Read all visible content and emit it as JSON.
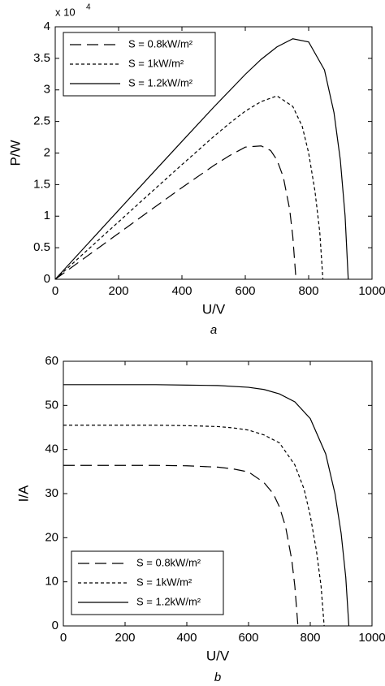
{
  "chart_data": [
    {
      "type": "line",
      "xlabel": "U/V",
      "ylabel": "P/W",
      "caption": "a",
      "axis_multiplier": "x 10",
      "axis_multiplier_exponent": "4",
      "xlim": [
        0,
        1000
      ],
      "ylim": [
        0,
        4
      ],
      "xticks": [
        0,
        200,
        400,
        600,
        800,
        1000
      ],
      "yticks": [
        0,
        0.5,
        1,
        1.5,
        2,
        2.5,
        3,
        3.5,
        4
      ],
      "legend": "upper left",
      "series": [
        {
          "name": "S = 0.8kW/m²",
          "color": "#000000",
          "linestyle": "dashed",
          "x": [
            0,
            100,
            200,
            300,
            400,
            500,
            550,
            600,
            650,
            680,
            700,
            720,
            740,
            750,
            760
          ],
          "values": [
            0,
            0.364,
            0.728,
            1.092,
            1.452,
            1.8,
            1.958,
            2.094,
            2.113,
            2.04,
            1.89,
            1.62,
            1.11,
            0.675,
            0
          ]
        },
        {
          "name": "S = 1kW/m²",
          "color": "#000000",
          "linestyle": "dotted",
          "x": [
            0,
            100,
            200,
            300,
            400,
            500,
            550,
            600,
            650,
            700,
            750,
            780,
            800,
            820,
            835,
            845
          ],
          "values": [
            0,
            0.455,
            0.91,
            1.365,
            1.816,
            2.26,
            2.47,
            2.664,
            2.815,
            2.905,
            2.738,
            2.418,
            2.0,
            1.394,
            0.752,
            0
          ]
        },
        {
          "name": "S = 1.2kW/m²",
          "color": "#000000",
          "linestyle": "solid",
          "x": [
            0,
            100,
            200,
            300,
            400,
            500,
            600,
            650,
            700,
            750,
            800,
            850,
            880,
            900,
            915,
            925
          ],
          "values": [
            0,
            0.547,
            1.094,
            1.641,
            2.184,
            2.725,
            3.246,
            3.484,
            3.682,
            3.81,
            3.76,
            3.315,
            2.64,
            1.89,
            1.007,
            0
          ]
        }
      ]
    },
    {
      "type": "line",
      "xlabel": "U/V",
      "ylabel": "I/A",
      "caption": "b",
      "xlim": [
        0,
        1000
      ],
      "ylim": [
        0,
        60
      ],
      "xticks": [
        0,
        200,
        400,
        600,
        800,
        1000
      ],
      "yticks": [
        0,
        10,
        20,
        30,
        40,
        50,
        60
      ],
      "legend": "lower left",
      "series": [
        {
          "name": "S = 0.8kW/m²",
          "color": "#000000",
          "linestyle": "dashed",
          "x": [
            0,
            100,
            200,
            300,
            400,
            500,
            550,
            600,
            650,
            680,
            700,
            720,
            740,
            750,
            760
          ],
          "values": [
            36.4,
            36.4,
            36.4,
            36.4,
            36.3,
            36,
            35.6,
            34.9,
            32.5,
            30,
            27,
            22.5,
            15,
            9,
            0
          ]
        },
        {
          "name": "S = 1kW/m²",
          "color": "#000000",
          "linestyle": "dotted",
          "x": [
            0,
            100,
            200,
            300,
            400,
            500,
            550,
            600,
            650,
            700,
            750,
            780,
            800,
            820,
            835,
            845
          ],
          "values": [
            45.5,
            45.5,
            45.5,
            45.5,
            45.4,
            45.2,
            44.9,
            44.4,
            43.3,
            41.5,
            36.5,
            31,
            25,
            17,
            9,
            0
          ]
        },
        {
          "name": "S = 1.2kW/m²",
          "color": "#000000",
          "linestyle": "solid",
          "x": [
            0,
            100,
            200,
            300,
            400,
            500,
            600,
            650,
            700,
            750,
            800,
            850,
            880,
            900,
            915,
            925
          ],
          "values": [
            54.7,
            54.7,
            54.7,
            54.7,
            54.6,
            54.5,
            54.1,
            53.6,
            52.6,
            50.8,
            47,
            39,
            30,
            21,
            11,
            0
          ]
        }
      ]
    }
  ]
}
